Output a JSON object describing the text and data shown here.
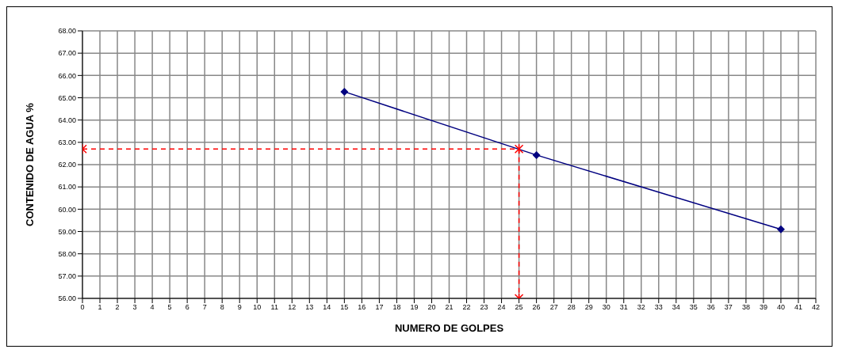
{
  "chart_data": {
    "type": "line",
    "xlabel": "NUMERO DE GOLPES",
    "ylabel": "CONTENIDO DE AGUA %",
    "xlim": [
      0,
      42
    ],
    "xticks": [
      0,
      1,
      2,
      3,
      4,
      5,
      6,
      7,
      8,
      9,
      10,
      11,
      12,
      13,
      14,
      15,
      16,
      17,
      18,
      19,
      20,
      21,
      22,
      23,
      24,
      25,
      26,
      27,
      28,
      29,
      30,
      31,
      32,
      33,
      34,
      35,
      36,
      37,
      38,
      39,
      40,
      41,
      42
    ],
    "ylim": [
      56,
      68
    ],
    "yticks": [
      {
        "value": 56,
        "label": "56.00"
      },
      {
        "value": 57,
        "label": "57.00"
      },
      {
        "value": 58,
        "label": "58.00"
      },
      {
        "value": 59,
        "label": "59.00"
      },
      {
        "value": 60,
        "label": "60.00"
      },
      {
        "value": 61,
        "label": "61.00"
      },
      {
        "value": 62,
        "label": "62.00"
      },
      {
        "value": 63,
        "label": "63.00"
      },
      {
        "value": 64,
        "label": "64.00"
      },
      {
        "value": 65,
        "label": "65.00"
      },
      {
        "value": 66,
        "label": "66.00"
      },
      {
        "value": 67,
        "label": "67.00"
      },
      {
        "value": 68,
        "label": "68.00"
      }
    ],
    "grid": true,
    "series": [
      {
        "color": "#000080",
        "x": [
          15,
          26,
          40
        ],
        "values": [
          65.27,
          62.43,
          59.1
        ],
        "marker": "diamond",
        "line_style": "solid"
      },
      {
        "color": "#ff0000",
        "x": [
          0,
          25,
          25
        ],
        "values": [
          62.7,
          62.7,
          56
        ],
        "marker": "cross",
        "line_style": "dashed"
      }
    ]
  }
}
